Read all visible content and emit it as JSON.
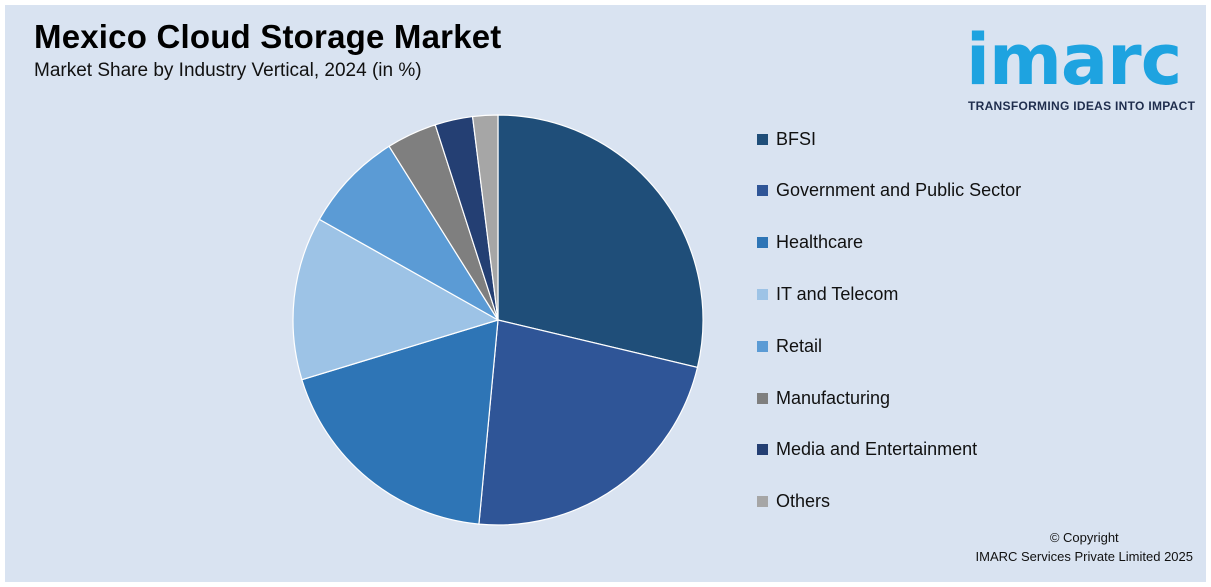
{
  "header": {
    "title": "Mexico Cloud Storage Market",
    "subtitle": "Market Share by Industry Vertical, 2024 (in %)"
  },
  "logo": {
    "wordmark": "imarc",
    "tagline": "TRANSFORMING IDEAS INTO IMPACT",
    "color": "#1ea3e0"
  },
  "chart_data": {
    "type": "pie",
    "title": "Mexico Cloud Storage Market",
    "subtitle": "Market Share by Industry Vertical, 2024 (in %)",
    "start_angle": "12 o'clock",
    "direction": "clockwise",
    "legend_position": "right",
    "slices": [
      {
        "label": "BFSI",
        "value": 29,
        "color": "#1f4e79"
      },
      {
        "label": "Government and Public Sector",
        "value": 23,
        "color": "#2f5597"
      },
      {
        "label": "Healthcare",
        "value": 19,
        "color": "#2e75b6"
      },
      {
        "label": "IT and Telecom",
        "value": 13,
        "color": "#9dc3e6"
      },
      {
        "label": "Retail",
        "value": 8,
        "color": "#5b9bd5"
      },
      {
        "label": "Manufacturing",
        "value": 4,
        "color": "#7f7f7f"
      },
      {
        "label": "Media and Entertainment",
        "value": 3,
        "color": "#243f73"
      },
      {
        "label": "Others",
        "value": 2,
        "color": "#a6a6a6"
      }
    ]
  },
  "footer": {
    "copyright_line1": "© Copyright",
    "copyright_line2": "IMARC Services Private Limited 2025"
  }
}
